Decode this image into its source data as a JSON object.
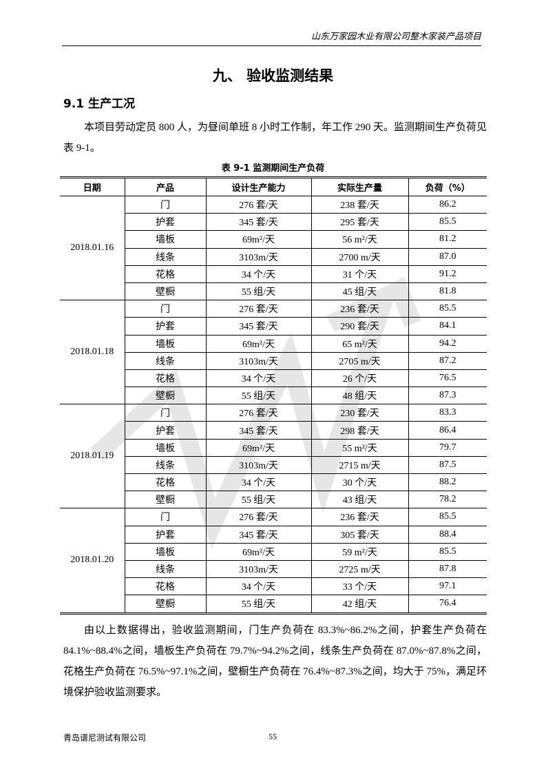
{
  "header": {
    "text": "山东万家园木业有限公司整木家装产品项目"
  },
  "title": "九、  验收监测结果",
  "section": "9.1  生产工况",
  "intro": "本项目劳动定员 800 人，为昼间单班 8 小时工作制，年工作 290 天。监测期间生产负荷见表 9-1。",
  "table": {
    "caption": "表 9-1 监测期间生产负荷",
    "headers": [
      "日期",
      "产品",
      "设计生产能力",
      "实际生产量",
      "负荷（%）"
    ],
    "groups": [
      {
        "date": "2018.01.16",
        "rows": [
          [
            "门",
            "276 套/天",
            "238 套/天",
            "86.2"
          ],
          [
            "护套",
            "345 套/天",
            "295 套/天",
            "85.5"
          ],
          [
            "墙板",
            "69m²/天",
            "56 m²/天",
            "81.2"
          ],
          [
            "线条",
            "3103m/天",
            "2700 m/天",
            "87.0"
          ],
          [
            "花格",
            "34 个/天",
            "31 个/天",
            "91.2"
          ],
          [
            "壁橱",
            "55 组/天",
            "45 组/天",
            "81.8"
          ]
        ]
      },
      {
        "date": "2018.01.18",
        "rows": [
          [
            "门",
            "276 套/天",
            "236 套/天",
            "85.5"
          ],
          [
            "护套",
            "345 套/天",
            "290 套/天",
            "84.1"
          ],
          [
            "墙板",
            "69m²/天",
            "65 m²/天",
            "94.2"
          ],
          [
            "线条",
            "3103m/天",
            "2705 m/天",
            "87.2"
          ],
          [
            "花格",
            "34 个/天",
            "26 个/天",
            "76.5"
          ],
          [
            "壁橱",
            "55 组/天",
            "48 组/天",
            "87.3"
          ]
        ]
      },
      {
        "date": "2018.01.19",
        "rows": [
          [
            "门",
            "276 套/天",
            "230 套/天",
            "83.3"
          ],
          [
            "护套",
            "345 套/天",
            "298 套/天",
            "86.4"
          ],
          [
            "墙板",
            "69m²/天",
            "55 m²/天",
            "79.7"
          ],
          [
            "线条",
            "3103m/天",
            "2715 m/天",
            "87.5"
          ],
          [
            "花格",
            "34 个/天",
            "30 个/天",
            "88.2"
          ],
          [
            "壁橱",
            "55 组/天",
            "43 组/天",
            "78.2"
          ]
        ]
      },
      {
        "date": "2018.01.20",
        "rows": [
          [
            "门",
            "276 套/天",
            "236 套/天",
            "85.5"
          ],
          [
            "护套",
            "345 套/天",
            "305 套/天",
            "88.4"
          ],
          [
            "墙板",
            "69m²/天",
            "59 m²/天",
            "85.5"
          ],
          [
            "线条",
            "3103m/天",
            "2725 m/天",
            "87.8"
          ],
          [
            "花格",
            "34 个/天",
            "33 个/天",
            "97.1"
          ],
          [
            "壁橱",
            "55 组/天",
            "42 组/天",
            "76.4"
          ]
        ]
      }
    ]
  },
  "conclusion": "由以上数据得出，验收监测期间，门生产负荷在 83.3%~86.2%之间，护套生产负荷在 84.1%~88.4%之间，墙板生产负荷在 79.7%~94.2%之间，线条生产负荷在 87.0%~87.8%之间，花格生产负荷在 76.5%~97.1%之间，壁橱生产负荷在 76.4%~87.3%之间，均大于 75%，满足环境保护验收监测要求。",
  "footer": {
    "company": "青岛谱尼测试有限公司",
    "page": "55"
  }
}
